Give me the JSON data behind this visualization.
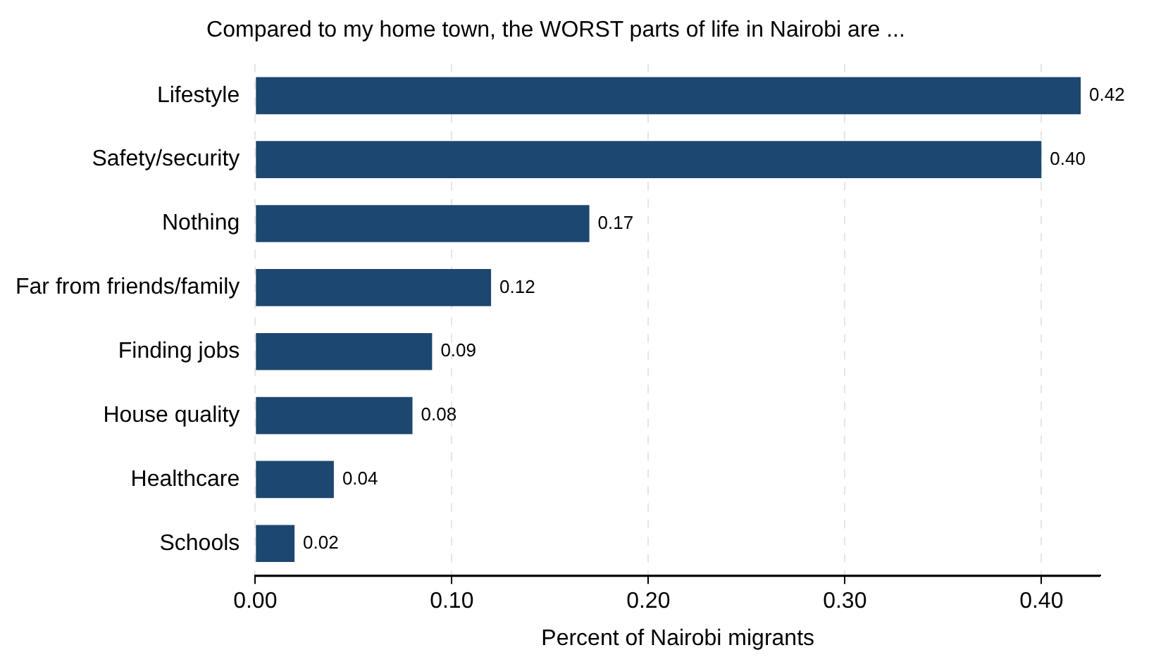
{
  "chart_data": {
    "type": "bar",
    "orientation": "horizontal",
    "title": "Compared to my home town, the WORST parts of life in Nairobi are ...",
    "xlabel": "Percent of Nairobi migrants",
    "categories": [
      "Lifestyle",
      "Safety/security",
      "Nothing",
      "Far from friends/family",
      "Finding jobs",
      "House quality",
      "Healthcare",
      "Schools"
    ],
    "values": [
      0.42,
      0.4,
      0.17,
      0.12,
      0.09,
      0.08,
      0.04,
      0.02
    ],
    "color": "#1c4770",
    "xlim": [
      0,
      0.43
    ],
    "xticks": [
      {
        "value": 0,
        "label": "0.00"
      },
      {
        "value": 0.1,
        "label": "0.10"
      },
      {
        "value": 0.2,
        "label": "0.20"
      },
      {
        "value": 0.3,
        "label": "0.30"
      },
      {
        "value": 0.4,
        "label": "0.40"
      }
    ],
    "value_labels": [
      "0.42",
      "0.40",
      "0.17",
      "0.12",
      "0.09",
      "0.08",
      "0.04",
      "0.02"
    ],
    "grid": "x",
    "legend": false
  }
}
